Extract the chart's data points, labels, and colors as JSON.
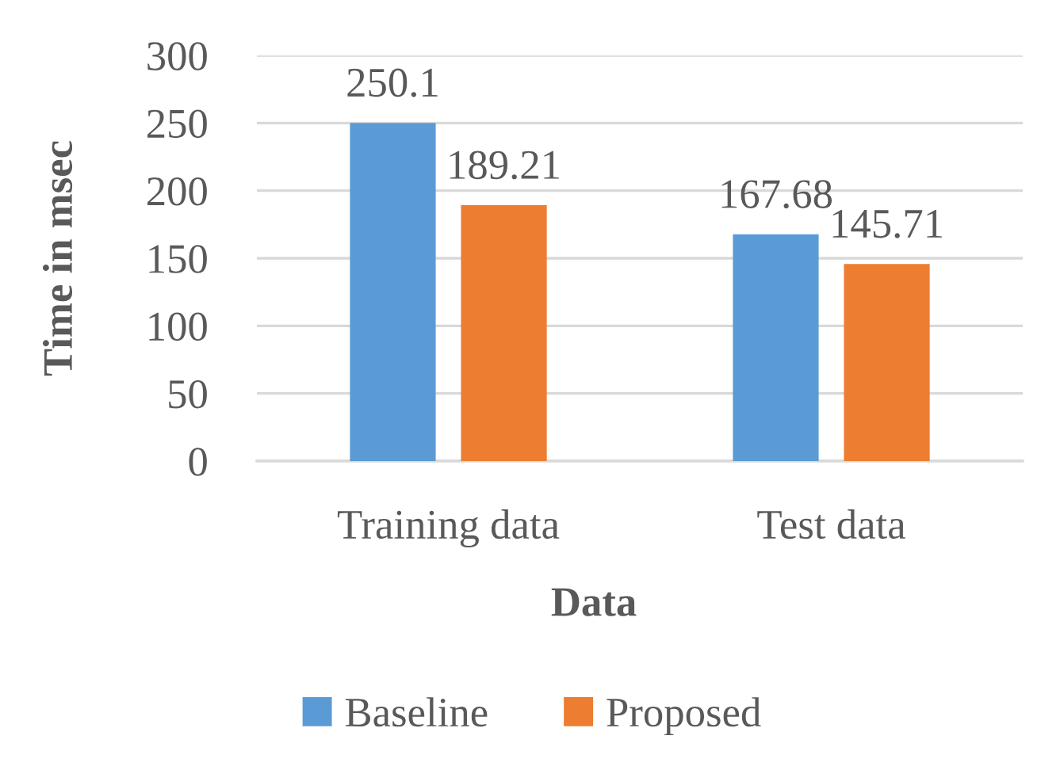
{
  "chart_data": {
    "type": "bar",
    "xlabel": "Data",
    "ylabel": "Time in msec",
    "categories": [
      "Training data",
      "Test data"
    ],
    "series": [
      {
        "name": "Baseline",
        "color": "#5b9bd5",
        "values": [
          250.1,
          167.68
        ]
      },
      {
        "name": "Proposed",
        "color": "#ed7d31",
        "values": [
          189.21,
          145.71
        ]
      }
    ],
    "ylim": [
      0,
      300
    ],
    "yticks": [
      0,
      50,
      100,
      150,
      200,
      250,
      300
    ],
    "grid": "y",
    "legend": "bottom",
    "data_labels": true
  }
}
